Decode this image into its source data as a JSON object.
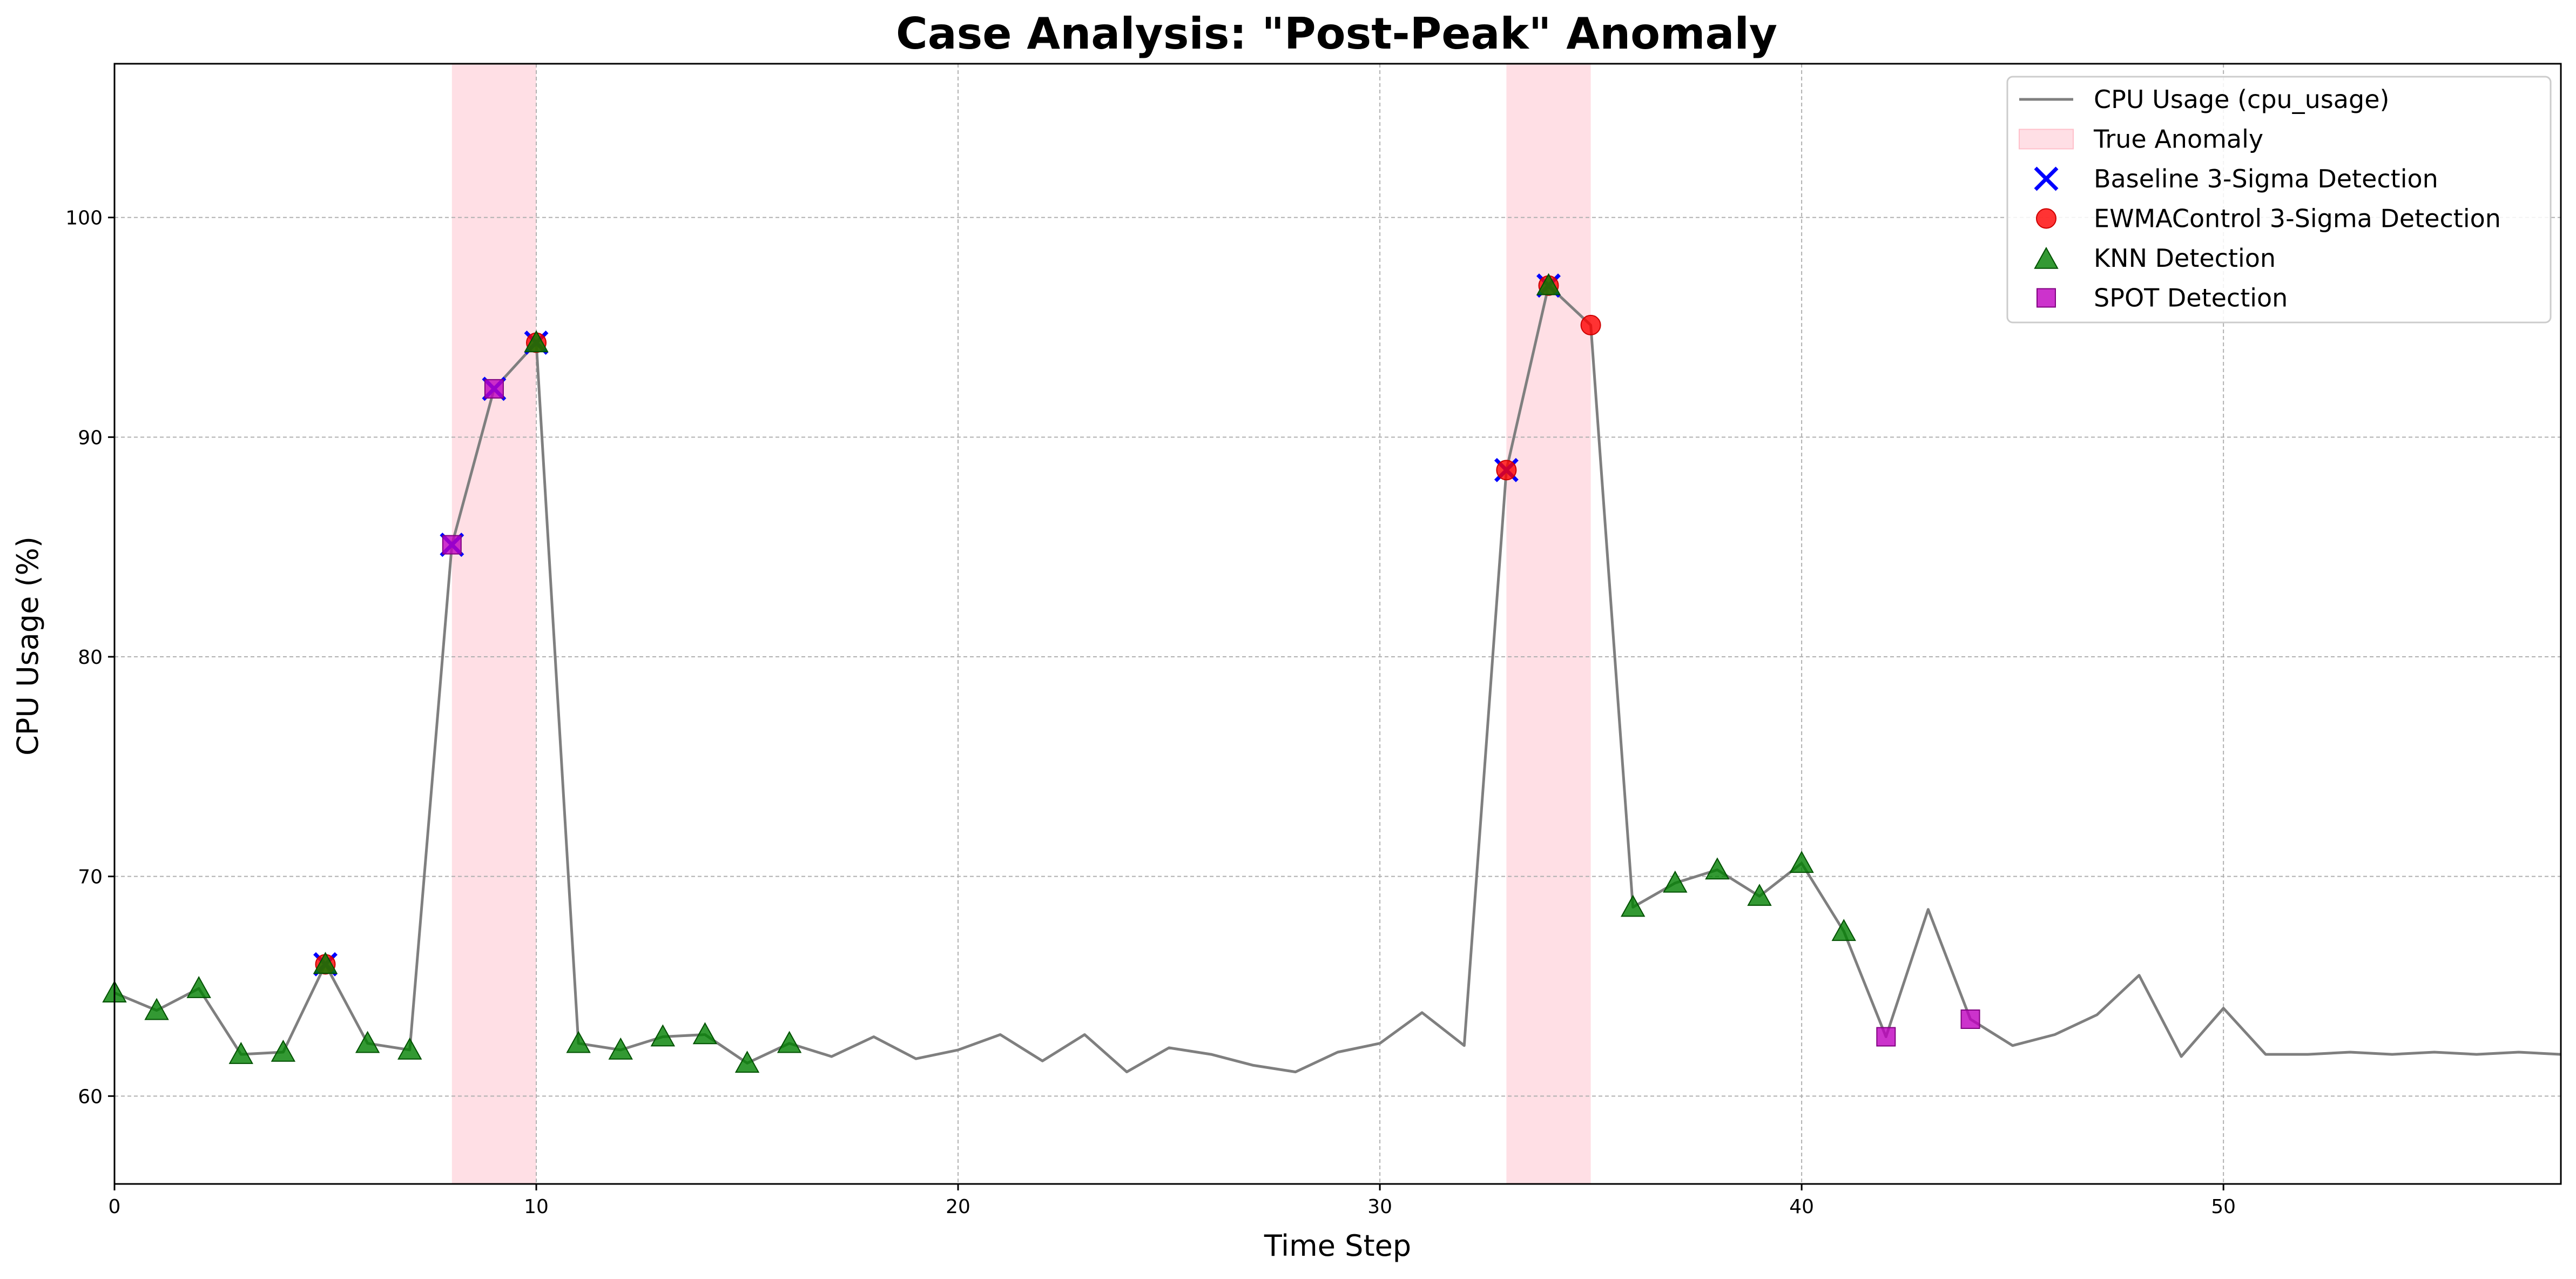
{
  "chart_data": {
    "type": "line",
    "title": "Case Analysis: \"Post-Peak\" Anomaly",
    "xlabel": "Time Step",
    "ylabel": "CPU Usage (%)",
    "xlim": [
      0,
      58
    ],
    "ylim": [
      56,
      107
    ],
    "xticks": [
      0,
      10,
      20,
      30,
      40,
      50
    ],
    "yticks": [
      60,
      70,
      80,
      90,
      100
    ],
    "grid": true,
    "legend_position": "top-right",
    "colors": {
      "line": "#7f7f7f",
      "anomaly_band": "#ffc0cb",
      "baseline": "#0000ff",
      "ewma": "#ff0000",
      "knn": "#008000",
      "spot": "#bf00bf"
    },
    "series": [
      {
        "name": "CPU Usage (cpu_usage)",
        "kind": "line",
        "x": [
          0,
          1,
          2,
          3,
          4,
          5,
          6,
          7,
          8,
          9,
          10,
          11,
          12,
          13,
          14,
          15,
          16,
          17,
          18,
          19,
          20,
          21,
          22,
          23,
          24,
          25,
          26,
          27,
          28,
          29,
          30,
          31,
          32,
          33,
          34,
          35,
          36,
          37,
          38,
          39,
          40,
          41,
          42,
          43,
          44,
          45,
          46,
          47,
          48,
          49,
          50,
          51,
          52,
          53,
          54,
          55,
          56,
          57,
          58
        ],
        "y": [
          64.7,
          63.9,
          64.9,
          61.9,
          62.0,
          66.0,
          62.4,
          62.1,
          85.1,
          92.2,
          94.3,
          62.4,
          62.1,
          62.7,
          62.8,
          61.5,
          62.4,
          61.8,
          62.7,
          61.7,
          62.1,
          62.8,
          61.6,
          62.8,
          61.1,
          62.2,
          61.9,
          61.4,
          61.1,
          62.0,
          62.4,
          63.8,
          62.3,
          88.5,
          96.9,
          95.1,
          68.6,
          69.7,
          70.3,
          69.1,
          70.6,
          67.5,
          62.7,
          68.5,
          63.5,
          62.3,
          62.8,
          63.7,
          65.5,
          61.8,
          64.0,
          61.9,
          61.9,
          62.0,
          61.9,
          62.0,
          61.9,
          62.0,
          61.9
        ]
      },
      {
        "name": "Baseline 3-Sigma Detection",
        "kind": "scatter",
        "marker": "x",
        "x": [
          5,
          8,
          9,
          10,
          33,
          34
        ],
        "y": [
          66.0,
          85.1,
          92.2,
          94.3,
          88.5,
          96.9
        ]
      },
      {
        "name": "EWMAControl 3-Sigma Detection",
        "kind": "scatter",
        "marker": "circle",
        "x": [
          5,
          10,
          33,
          34,
          35
        ],
        "y": [
          66.0,
          94.3,
          88.5,
          96.9,
          95.1
        ]
      },
      {
        "name": "KNN Detection",
        "kind": "scatter",
        "marker": "triangle",
        "x": [
          0,
          1,
          2,
          3,
          4,
          5,
          6,
          7,
          10,
          11,
          12,
          13,
          14,
          15,
          16,
          34,
          36,
          37,
          38,
          39,
          40,
          41
        ],
        "y": [
          64.7,
          63.9,
          64.9,
          61.9,
          62.0,
          66.0,
          62.4,
          62.1,
          94.3,
          62.4,
          62.1,
          62.7,
          62.8,
          61.5,
          62.4,
          96.9,
          68.6,
          69.7,
          70.3,
          69.1,
          70.6,
          67.5
        ]
      },
      {
        "name": "SPOT Detection",
        "kind": "scatter",
        "marker": "square",
        "x": [
          8,
          9,
          42,
          44
        ],
        "y": [
          85.1,
          92.2,
          62.7,
          63.5
        ]
      }
    ],
    "anomaly_regions": {
      "name": "True Anomaly",
      "ranges": [
        [
          8,
          10
        ],
        [
          33,
          35
        ]
      ]
    },
    "legend": [
      "CPU Usage (cpu_usage)",
      "True Anomaly",
      "Baseline 3-Sigma Detection",
      "EWMAControl 3-Sigma Detection",
      "KNN Detection",
      "SPOT Detection"
    ]
  }
}
